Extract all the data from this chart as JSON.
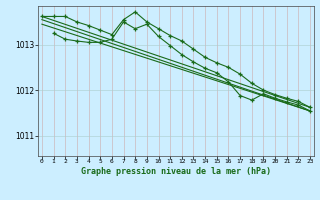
{
  "title": "Graphe pression niveau de la mer (hPa)",
  "background_color": "#cceeff",
  "grid_color": "#aaddcc",
  "line_color": "#1a6b1a",
  "yticks": [
    1011,
    1012,
    1013
  ],
  "ylim": [
    1010.55,
    1013.85
  ],
  "xlim": [
    -0.3,
    23.3
  ],
  "series1_x": [
    0,
    1,
    2,
    3,
    4,
    5,
    6,
    7,
    8,
    9,
    10,
    11,
    12,
    13,
    14,
    15,
    16,
    17,
    18,
    19,
    20,
    21,
    22,
    23
  ],
  "series1_y": [
    1013.62,
    1013.62,
    1013.62,
    1013.5,
    1013.42,
    1013.32,
    1013.22,
    1013.55,
    1013.72,
    1013.5,
    1013.35,
    1013.2,
    1013.08,
    1012.9,
    1012.72,
    1012.6,
    1012.5,
    1012.35,
    1012.15,
    1012.0,
    1011.9,
    1011.82,
    1011.75,
    1011.62
  ],
  "series2_x": [
    1,
    2,
    3,
    4,
    5,
    6,
    7,
    8,
    9,
    10,
    11,
    12,
    13,
    14,
    15,
    16,
    17,
    18,
    19,
    20,
    21,
    22,
    23
  ],
  "series2_y": [
    1013.25,
    1013.12,
    1013.08,
    1013.05,
    1013.05,
    1013.12,
    1013.5,
    1013.35,
    1013.45,
    1013.18,
    1012.98,
    1012.78,
    1012.62,
    1012.48,
    1012.38,
    1012.18,
    1011.88,
    1011.78,
    1011.92,
    1011.82,
    1011.74,
    1011.67,
    1011.54
  ],
  "line1_x": [
    0,
    23
  ],
  "line1_y": [
    1013.62,
    1011.62
  ],
  "line2_x": [
    0,
    23
  ],
  "line2_y": [
    1013.55,
    1011.54
  ],
  "line3_x": [
    0,
    23
  ],
  "line3_y": [
    1013.45,
    1011.54
  ]
}
